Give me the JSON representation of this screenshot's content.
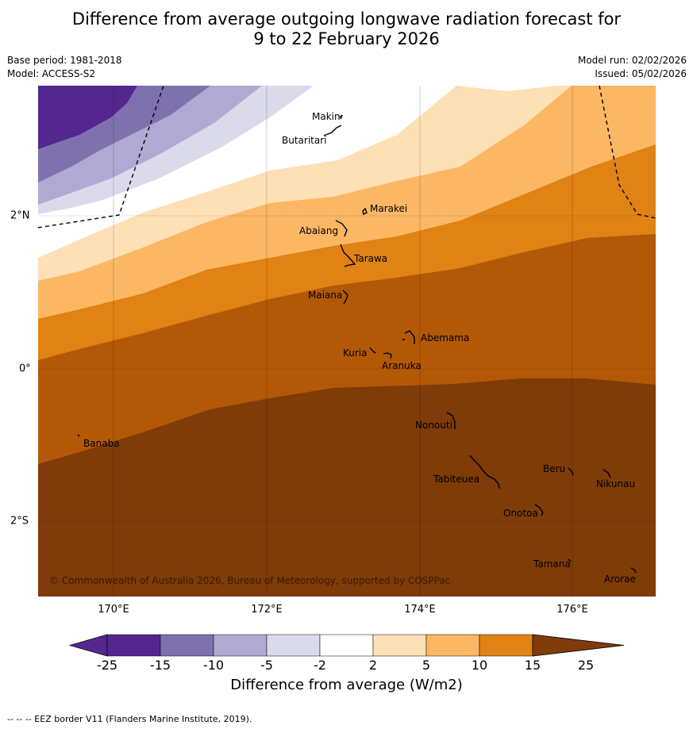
{
  "title_line1": "Difference from average outgoing longwave radiation forecast for",
  "title_line2": "9 to 22 February 2026",
  "base_period": "Base period: 1981-2018",
  "model": "Model: ACCESS-S2",
  "model_run": "Model run: 02/02/2026",
  "issued": "Issued: 05/02/2026",
  "copyright": "© Commonwealth of Australia 2026, Bureau of Meteorology, supported by COSPPac",
  "longitude_labels": [
    "170°E",
    "172°E",
    "174°E",
    "176°E"
  ],
  "latitude_labels": [
    "2°N",
    "0°",
    "2°S"
  ],
  "places": [
    "Makin",
    "Butaritari",
    "Marakei",
    "Abaiang",
    "Tarawa",
    "Maiana",
    "Abemama",
    "Kuria",
    "Aranuka",
    "Nonouti",
    "Banaba",
    "Tabiteuea",
    "Beru",
    "Nikunau",
    "Onotoa",
    "Tamana",
    "Arorae"
  ],
  "colorbar": {
    "title": "Difference from average (W/m2)",
    "ticks": [
      "-25",
      "-15",
      "-10",
      "-5",
      "-2",
      "2",
      "5",
      "10",
      "15",
      "25"
    ],
    "colors": [
      "#54278f",
      "#7f71ae",
      "#b0aad3",
      "#dadaeb",
      "#ffffff",
      "#fee0b6",
      "#fbb763",
      "#e08214",
      "#b35806",
      "#7f3b08"
    ]
  },
  "footer": "--  --  -- EEZ border V11 (Flanders Marine Institute, 2019)."
}
